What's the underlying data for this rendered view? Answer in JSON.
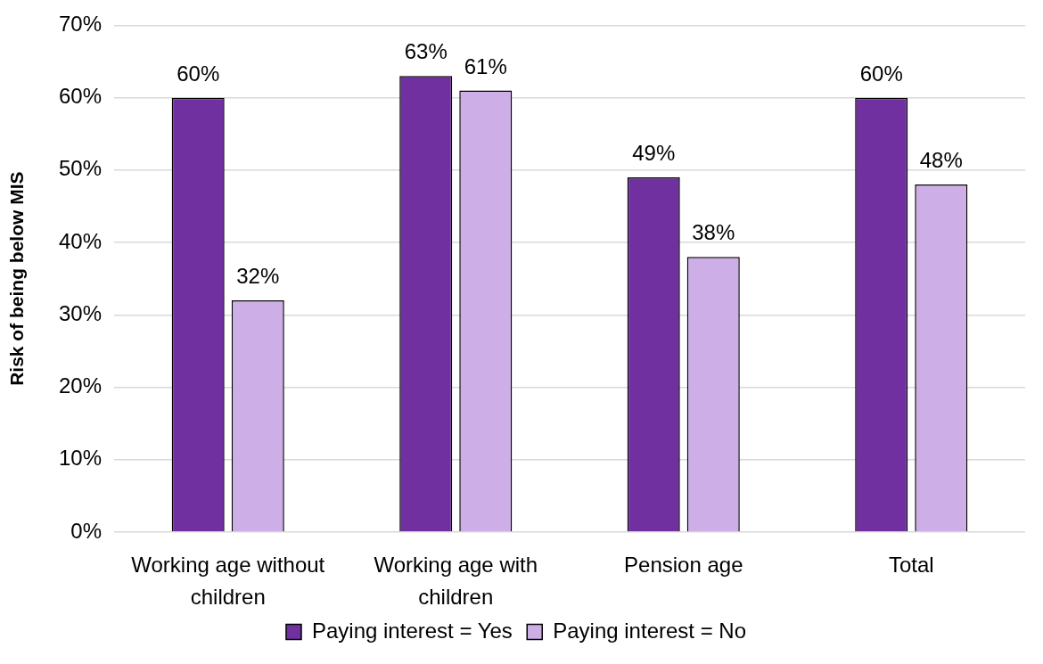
{
  "chart_data": {
    "type": "bar",
    "ylabel": "Risk of being below MIS",
    "categories": [
      "Working age without children",
      "Working age with children",
      "Pension age",
      "Total"
    ],
    "series": [
      {
        "name": "Paying interest = Yes",
        "color": "#7030a0",
        "values": [
          60,
          63,
          49,
          60
        ],
        "value_labels": [
          "60%",
          "63%",
          "49%",
          "60%"
        ]
      },
      {
        "name": "Paying interest = No",
        "color": "#cdaee6",
        "values": [
          32,
          61,
          38,
          48
        ],
        "value_labels": [
          "32%",
          "61%",
          "38%",
          "48%"
        ]
      }
    ],
    "ylim": [
      0,
      70
    ],
    "yticks": [
      {
        "value": 0,
        "label": "0%"
      },
      {
        "value": 10,
        "label": "10%"
      },
      {
        "value": 20,
        "label": "20%"
      },
      {
        "value": 30,
        "label": "30%"
      },
      {
        "value": 40,
        "label": "40%"
      },
      {
        "value": 50,
        "label": "50%"
      },
      {
        "value": 60,
        "label": "60%"
      },
      {
        "value": 70,
        "label": "70%"
      }
    ],
    "grid": "y",
    "legend": "bottom"
  }
}
